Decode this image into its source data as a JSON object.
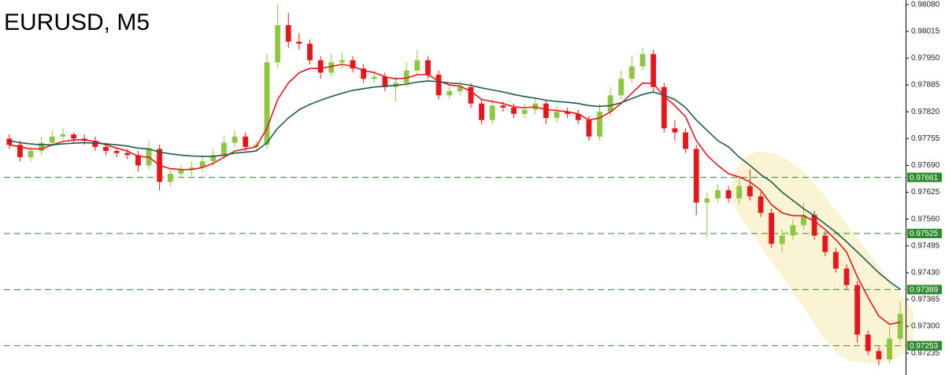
{
  "chart_data": {
    "type": "candlestick",
    "title": "EURUSD, M5",
    "ylim": [
      0.97182,
      0.98091
    ],
    "yticks": [
      {
        "value": 0.9808,
        "label": "0.98080"
      },
      0.98015,
      {
        "value": 0.9795,
        "label": "0.97950"
      },
      0.97885,
      {
        "value": 0.9782,
        "label": "0.97820"
      },
      0.97755,
      {
        "value": 0.9769,
        "label": "0.97690"
      },
      0.97625,
      {
        "value": 0.9756,
        "label": "0.97560"
      },
      0.97495,
      {
        "value": 0.9743,
        "label": "0.97430"
      },
      0.97365,
      {
        "value": 0.973,
        "label": "0.97300"
      },
      0.97235
    ],
    "up_color": "#8dc63f",
    "down_color": "#e8151b",
    "level_color": "#2f8a2f",
    "levels": [
      0.97661,
      0.97525,
      0.97389,
      0.97253
    ],
    "open": [
      0.97755,
      0.9774,
      0.9771,
      0.97725,
      0.97745,
      0.9776,
      0.97765,
      0.97755,
      0.9775,
      0.97735,
      0.97725,
      0.9772,
      0.97715,
      0.9769,
      0.9773,
      0.9765,
      0.9767,
      0.9768,
      0.97685,
      0.977,
      0.97715,
      0.97745,
      0.9776,
      0.97735,
      0.9774,
      0.9794,
      0.9803,
      0.9799,
      0.97985,
      0.97945,
      0.97915,
      0.9794,
      0.97945,
      0.97925,
      0.979,
      0.97905,
      0.9788,
      0.9789,
      0.9792,
      0.97945,
      0.9791,
      0.9786,
      0.9787,
      0.9788,
      0.9784,
      0.978,
      0.97835,
      0.9783,
      0.97815,
      0.97825,
      0.9784,
      0.97805,
      0.9782,
      0.97815,
      0.978,
      0.9776,
      0.9782,
      0.9786,
      0.979,
      0.9793,
      0.9796,
      0.9788,
      0.9778,
      0.9777,
      0.9773,
      0.976,
      0.9761,
      0.9763,
      0.9761,
      0.9764,
      0.97615,
      0.97575,
      0.975,
      0.9752,
      0.97545,
      0.9757,
      0.9752,
      0.9748,
      0.9744,
      0.974,
      0.9728,
      0.9724,
      0.9722,
      0.9727
    ],
    "high": [
      0.97765,
      0.9775,
      0.97735,
      0.9776,
      0.97775,
      0.9778,
      0.9777,
      0.97765,
      0.9776,
      0.97745,
      0.97735,
      0.9773,
      0.97725,
      0.9775,
      0.9774,
      0.9768,
      0.9769,
      0.977,
      0.97715,
      0.9773,
      0.9776,
      0.97775,
      0.9777,
      0.9775,
      0.9796,
      0.9808,
      0.9806,
      0.9801,
      0.97995,
      0.97955,
      0.9796,
      0.97965,
      0.97955,
      0.97935,
      0.9792,
      0.97915,
      0.97905,
      0.9794,
      0.9797,
      0.97955,
      0.9792,
      0.97885,
      0.97895,
      0.9789,
      0.9785,
      0.9785,
      0.97845,
      0.9784,
      0.9784,
      0.97855,
      0.9785,
      0.97835,
      0.9783,
      0.97825,
      0.9781,
      0.9784,
      0.9788,
      0.9792,
      0.97955,
      0.97975,
      0.9797,
      0.9789,
      0.978,
      0.9778,
      0.9774,
      0.97625,
      0.97645,
      0.9764,
      0.9766,
      0.9768,
      0.97625,
      0.97585,
      0.97535,
      0.9756,
      0.976,
      0.9758,
      0.9753,
      0.9749,
      0.9745,
      0.9741,
      0.9729,
      0.9725,
      0.973,
      0.9736
    ],
    "low": [
      0.9773,
      0.977,
      0.977,
      0.97715,
      0.97735,
      0.9775,
      0.97745,
      0.9774,
      0.97725,
      0.97715,
      0.9771,
      0.97705,
      0.97675,
      0.9768,
      0.9763,
      0.9764,
      0.9766,
      0.97665,
      0.97675,
      0.9769,
      0.97705,
      0.97735,
      0.97725,
      0.97725,
      0.9773,
      0.97925,
      0.97975,
      0.9797,
      0.97935,
      0.979,
      0.97905,
      0.97925,
      0.97915,
      0.9789,
      0.9789,
      0.9787,
      0.97845,
      0.9788,
      0.9791,
      0.979,
      0.9785,
      0.9785,
      0.9786,
      0.9783,
      0.9779,
      0.9779,
      0.9782,
      0.97805,
      0.97805,
      0.97815,
      0.9779,
      0.97795,
      0.97805,
      0.9779,
      0.9775,
      0.9775,
      0.9781,
      0.9785,
      0.9789,
      0.9792,
      0.9787,
      0.9777,
      0.9775,
      0.9772,
      0.9757,
      0.97515,
      0.976,
      0.976,
      0.97595,
      0.97605,
      0.97565,
      0.9749,
      0.9748,
      0.9751,
      0.97535,
      0.9751,
      0.9747,
      0.9743,
      0.9739,
      0.9726,
      0.9723,
      0.97205,
      0.9721,
      0.9726
    ],
    "close": [
      0.9774,
      0.9771,
      0.97725,
      0.97745,
      0.9776,
      0.97765,
      0.97755,
      0.9775,
      0.97735,
      0.97725,
      0.9772,
      0.97715,
      0.9769,
      0.9773,
      0.9765,
      0.9767,
      0.9768,
      0.97685,
      0.977,
      0.97715,
      0.97745,
      0.9776,
      0.97735,
      0.9774,
      0.9794,
      0.9803,
      0.9799,
      0.97985,
      0.97945,
      0.97915,
      0.9794,
      0.97945,
      0.97925,
      0.979,
      0.97905,
      0.9788,
      0.9789,
      0.9792,
      0.97945,
      0.9791,
      0.9786,
      0.9787,
      0.9788,
      0.9784,
      0.978,
      0.97835,
      0.9783,
      0.97815,
      0.97825,
      0.9784,
      0.97805,
      0.9782,
      0.97815,
      0.978,
      0.9776,
      0.9782,
      0.9786,
      0.979,
      0.9793,
      0.9796,
      0.9788,
      0.9778,
      0.9777,
      0.9773,
      0.976,
      0.9761,
      0.9763,
      0.9761,
      0.9764,
      0.97615,
      0.97575,
      0.975,
      0.9752,
      0.97545,
      0.9757,
      0.9752,
      0.9748,
      0.9744,
      0.974,
      0.9728,
      0.9724,
      0.9722,
      0.9727,
      0.9733
    ],
    "lines": [
      {
        "color": "#e8151b",
        "values": [
          0.9774,
          0.97735,
          0.9773,
          0.9773,
          0.9774,
          0.97748,
          0.97752,
          0.97752,
          0.97748,
          0.9774,
          0.97732,
          0.97725,
          0.97712,
          0.9771,
          0.9769,
          0.97682,
          0.9768,
          0.9768,
          0.97685,
          0.97695,
          0.9771,
          0.97725,
          0.9773,
          0.97735,
          0.9778,
          0.9785,
          0.9789,
          0.97915,
          0.97925,
          0.97925,
          0.9793,
          0.97935,
          0.9793,
          0.9792,
          0.97915,
          0.97905,
          0.979,
          0.97902,
          0.9791,
          0.9791,
          0.97895,
          0.97885,
          0.97882,
          0.9787,
          0.9785,
          0.97845,
          0.9784,
          0.97832,
          0.9783,
          0.97832,
          0.97825,
          0.97823,
          0.9782,
          0.97815,
          0.978,
          0.97805,
          0.9782,
          0.9784,
          0.97865,
          0.9789,
          0.97888,
          0.97858,
          0.97835,
          0.97808,
          0.9775,
          0.97715,
          0.9769,
          0.9767,
          0.97662,
          0.9765,
          0.9763,
          0.97595,
          0.97575,
          0.97568,
          0.97568,
          0.97555,
          0.97535,
          0.9751,
          0.9748,
          0.9742,
          0.9737,
          0.97325,
          0.97305,
          0.9731
        ]
      },
      {
        "color": "#1f5a4e",
        "values": [
          0.9775,
          0.97745,
          0.97742,
          0.9774,
          0.9774,
          0.97742,
          0.97744,
          0.97745,
          0.97744,
          0.97742,
          0.9774,
          0.97737,
          0.97732,
          0.9773,
          0.97722,
          0.97718,
          0.97715,
          0.97713,
          0.97712,
          0.97712,
          0.97715,
          0.9772,
          0.97722,
          0.97725,
          0.97745,
          0.9778,
          0.97805,
          0.97825,
          0.97838,
          0.97848,
          0.97857,
          0.97865,
          0.97872,
          0.97876,
          0.9788,
          0.97882,
          0.97884,
          0.97887,
          0.97892,
          0.97895,
          0.97893,
          0.9789,
          0.97888,
          0.97884,
          0.97878,
          0.97873,
          0.97868,
          0.97862,
          0.97857,
          0.97853,
          0.97848,
          0.97845,
          0.97843,
          0.9784,
          0.97835,
          0.97833,
          0.97835,
          0.97842,
          0.97852,
          0.97862,
          0.97868,
          0.9786,
          0.9785,
          0.9783,
          0.978,
          0.97775,
          0.9775,
          0.97735,
          0.9771,
          0.9769,
          0.97668,
          0.9765,
          0.97625,
          0.97605,
          0.97585,
          0.97568,
          0.97548,
          0.97528,
          0.97505,
          0.9748,
          0.97455,
          0.9743,
          0.97408,
          0.9739
        ]
      }
    ]
  }
}
